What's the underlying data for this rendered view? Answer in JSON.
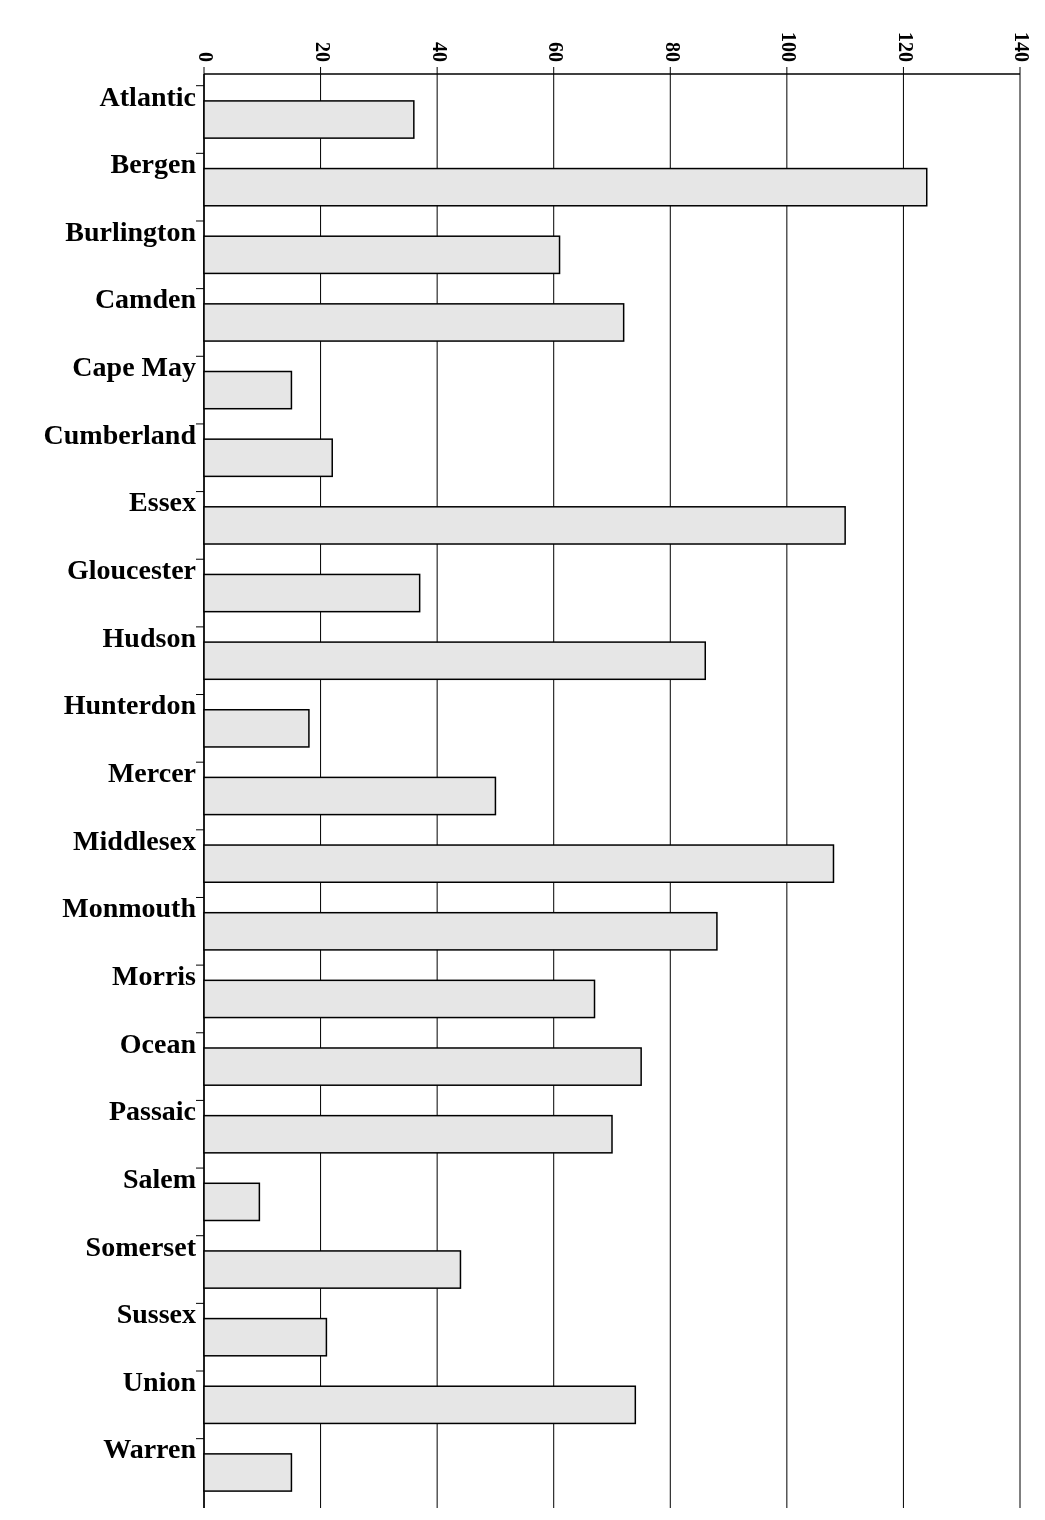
{
  "chart_data": {
    "type": "bar",
    "orientation": "horizontal",
    "categories": [
      "Atlantic",
      "Bergen",
      "Burlington",
      "Camden",
      "Cape May",
      "Cumberland",
      "Essex",
      "Gloucester",
      "Hudson",
      "Hunterdon",
      "Mercer",
      "Middlesex",
      "Monmouth",
      "Morris",
      "Ocean",
      "Passaic",
      "Salem",
      "Somerset",
      "Sussex",
      "Union",
      "Warren"
    ],
    "values": [
      36,
      124,
      61,
      72,
      15,
      22,
      110,
      37,
      86,
      18,
      50,
      108,
      88,
      67,
      75,
      70,
      9.5,
      44,
      21,
      74,
      15
    ],
    "color": "#e6e6e6",
    "xlim": [
      0,
      140
    ],
    "xticks": [
      0,
      20,
      40,
      60,
      80,
      100,
      120,
      140
    ],
    "grid": "x"
  }
}
